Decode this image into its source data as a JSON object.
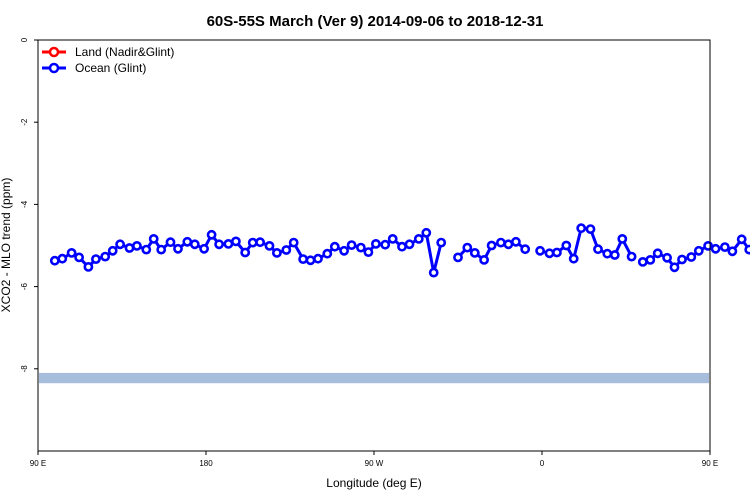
{
  "chart_data": {
    "type": "line",
    "title": "60S-55S March (Ver 9)   2014-09-06 to 2018-12-31",
    "xlabel": "Longitude (deg E)",
    "ylabel": "XCO2 - MLO trend (ppm)",
    "xlim": [
      90,
      450
    ],
    "ylim": [
      -10,
      0
    ],
    "x_ticks": [
      {
        "value": 90,
        "label": "90 E"
      },
      {
        "value": 180,
        "label": "180"
      },
      {
        "value": 270,
        "label": "90 W"
      },
      {
        "value": 360,
        "label": "0"
      },
      {
        "value": 450,
        "label": "90 E"
      },
      {
        "value": 540,
        "label": "180"
      }
    ],
    "y_ticks": [
      {
        "value": 0,
        "label": "0"
      },
      {
        "value": -2,
        "label": "-2"
      },
      {
        "value": -4,
        "label": "-4"
      },
      {
        "value": -6,
        "label": "-6"
      },
      {
        "value": -8,
        "label": "-8"
      }
    ],
    "legend": {
      "placement": "top-left",
      "entries": [
        {
          "name": "Land (Nadir&Glint)",
          "color": "#ff0000"
        },
        {
          "name": "Ocean (Glint)",
          "color": "#0000ff"
        }
      ]
    },
    "band": {
      "y_min": -8.35,
      "y_max": -8.1,
      "color": "#a6bddb"
    },
    "series": [
      {
        "name": "Ocean (Glint)",
        "color": "#0000ff",
        "segments": [
          [
            [
              99,
              -5.37
            ],
            [
              103,
              -5.32
            ],
            [
              108,
              -5.18
            ],
            [
              112,
              -5.29
            ],
            [
              117,
              -5.52
            ],
            [
              121,
              -5.33
            ],
            [
              126,
              -5.27
            ],
            [
              130,
              -5.13
            ],
            [
              134,
              -4.97
            ],
            [
              139,
              -5.06
            ],
            [
              143,
              -5.01
            ],
            [
              148,
              -5.1
            ],
            [
              152,
              -4.84
            ],
            [
              156,
              -5.1
            ],
            [
              161,
              -4.92
            ],
            [
              165,
              -5.08
            ],
            [
              170,
              -4.91
            ],
            [
              174,
              -4.97
            ],
            [
              179,
              -5.08
            ],
            [
              183,
              -4.74
            ],
            [
              187,
              -4.97
            ],
            [
              192,
              -4.96
            ],
            [
              196,
              -4.9
            ],
            [
              201,
              -5.17
            ],
            [
              205,
              -4.93
            ],
            [
              209,
              -4.92
            ],
            [
              214,
              -5.01
            ],
            [
              218,
              -5.18
            ],
            [
              223,
              -5.11
            ],
            [
              227,
              -4.93
            ],
            [
              232,
              -5.33
            ],
            [
              236,
              -5.36
            ],
            [
              240,
              -5.32
            ],
            [
              245,
              -5.2
            ],
            [
              249,
              -5.03
            ],
            [
              254,
              -5.13
            ],
            [
              258,
              -4.99
            ],
            [
              263,
              -5.05
            ],
            [
              267,
              -5.16
            ],
            [
              271,
              -4.96
            ],
            [
              276,
              -4.98
            ],
            [
              280,
              -4.84
            ],
            [
              285,
              -5.03
            ],
            [
              289,
              -4.97
            ],
            [
              294,
              -4.84
            ],
            [
              298,
              -4.69
            ],
            [
              302,
              -5.66
            ],
            [
              306,
              -4.93
            ]
          ],
          [
            [
              315,
              -5.29
            ],
            [
              320,
              -5.05
            ],
            [
              324,
              -5.18
            ],
            [
              329,
              -5.35
            ],
            [
              333,
              -5.0
            ],
            [
              338,
              -4.93
            ],
            [
              342,
              -4.97
            ],
            [
              346,
              -4.91
            ],
            [
              351,
              -5.09
            ]
          ],
          [
            [
              359,
              -5.13
            ],
            [
              364,
              -5.19
            ],
            [
              368,
              -5.17
            ],
            [
              373,
              -5.0
            ],
            [
              377,
              -5.32
            ],
            [
              381,
              -4.58
            ],
            [
              386,
              -4.6
            ],
            [
              390,
              -5.09
            ],
            [
              395,
              -5.2
            ],
            [
              399,
              -5.23
            ],
            [
              403,
              -4.84
            ],
            [
              408,
              -5.27
            ]
          ],
          [
            [
              414,
              -5.4
            ],
            [
              418,
              -5.35
            ],
            [
              422,
              -5.19
            ],
            [
              427,
              -5.3
            ],
            [
              431,
              -5.53
            ],
            [
              435,
              -5.34
            ],
            [
              440,
              -5.28
            ],
            [
              444,
              -5.13
            ],
            [
              449,
              -5.01
            ],
            [
              453,
              -5.08
            ],
            [
              458,
              -5.04
            ],
            [
              462,
              -5.14
            ],
            [
              467,
              -4.85
            ],
            [
              471,
              -5.1
            ],
            [
              476,
              -4.93
            ],
            [
              480,
              -5.08
            ],
            [
              484,
              -4.9
            ]
          ]
        ]
      }
    ]
  }
}
